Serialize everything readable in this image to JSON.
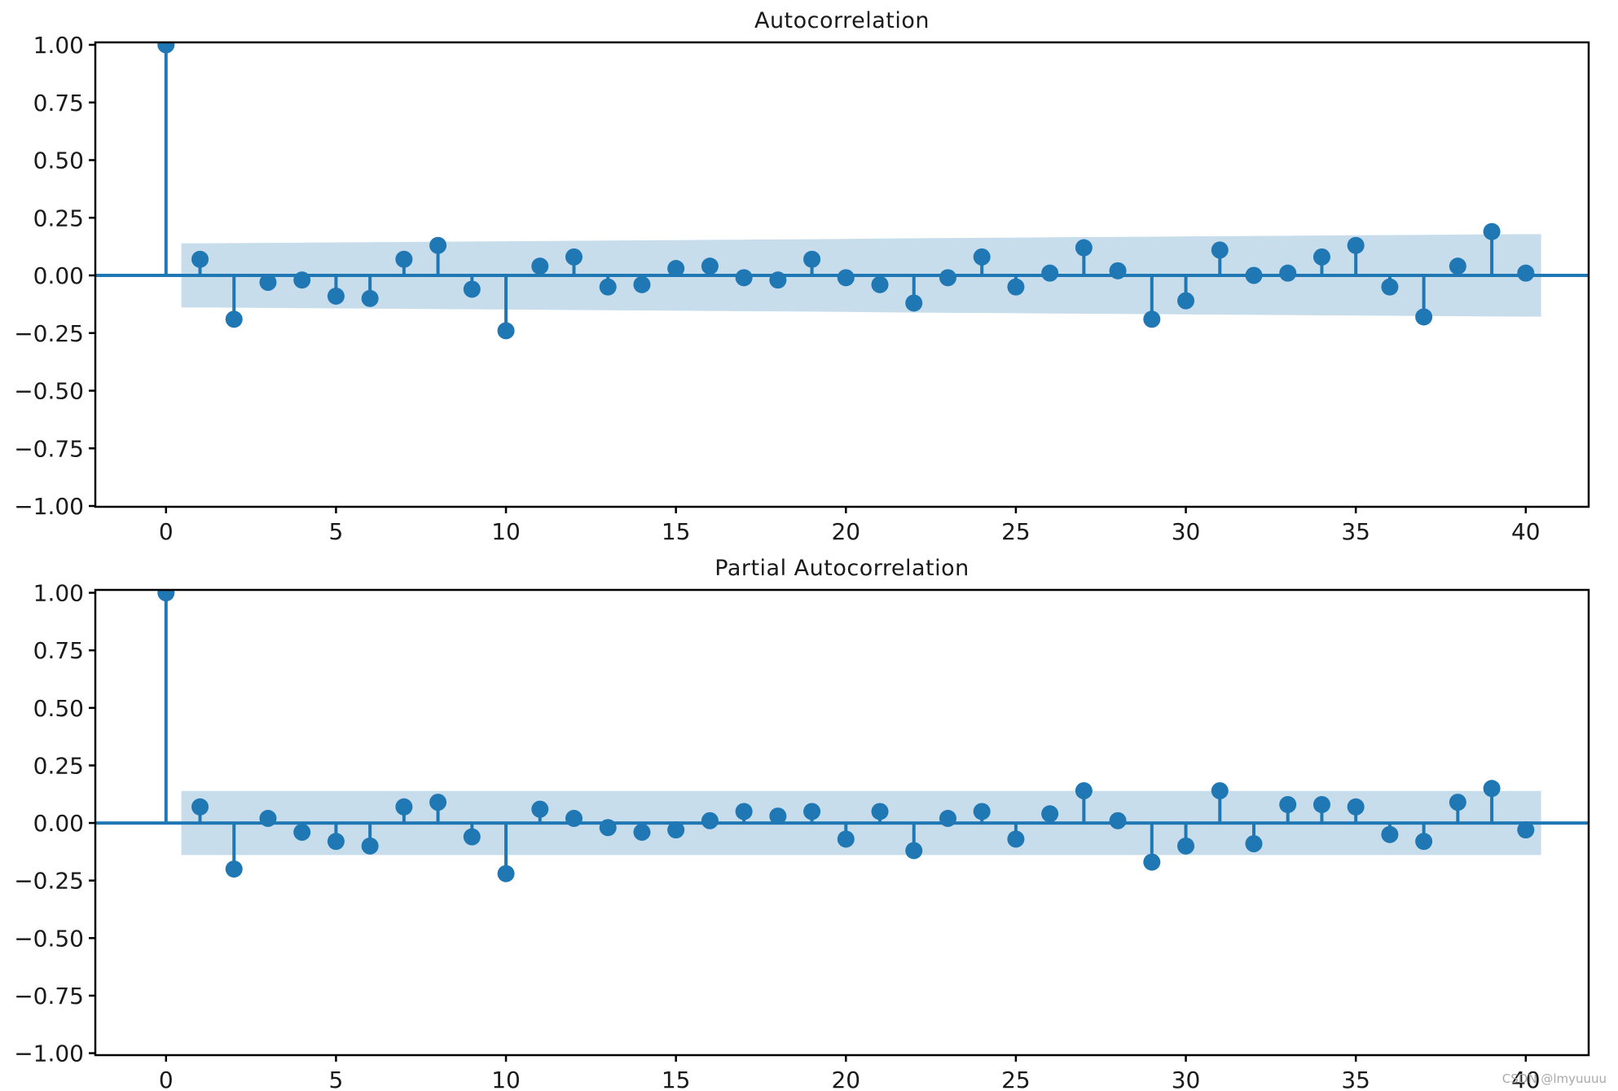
{
  "figure": {
    "background": "#ffffff",
    "accent_color": "#1f77b4",
    "band_opacity": 0.25,
    "spine_color": "#000000",
    "text_color": "#1a1a1a"
  },
  "watermark": {
    "text": "CSDN @lmyuuuu",
    "color": "#a9a9a9"
  },
  "chart_data": [
    {
      "type": "stem",
      "title": "Autocorrelation",
      "x": [
        0,
        1,
        2,
        3,
        4,
        5,
        6,
        7,
        8,
        9,
        10,
        11,
        12,
        13,
        14,
        15,
        16,
        17,
        18,
        19,
        20,
        21,
        22,
        23,
        24,
        25,
        26,
        27,
        28,
        29,
        30,
        31,
        32,
        33,
        34,
        35,
        36,
        37,
        38,
        39,
        40
      ],
      "values": [
        1.0,
        0.07,
        -0.19,
        -0.03,
        -0.02,
        -0.09,
        -0.1,
        0.07,
        0.13,
        -0.06,
        -0.24,
        0.04,
        0.08,
        -0.05,
        -0.04,
        0.03,
        0.04,
        -0.01,
        -0.02,
        0.07,
        -0.01,
        -0.04,
        -0.12,
        -0.01,
        0.08,
        -0.05,
        0.01,
        0.12,
        0.02,
        -0.19,
        -0.11,
        0.11,
        0.0,
        0.01,
        0.08,
        0.13,
        -0.05,
        -0.18,
        0.04,
        0.19,
        0.01
      ],
      "ci_lags": [
        1,
        2,
        3,
        4,
        5,
        6,
        7,
        8,
        9,
        10,
        11,
        12,
        13,
        14,
        15,
        16,
        17,
        18,
        19,
        20,
        21,
        22,
        23,
        24,
        25,
        26,
        27,
        28,
        29,
        30,
        31,
        32,
        33,
        34,
        35,
        36,
        37,
        38,
        39,
        40
      ],
      "ci_upper": [
        0.139,
        0.14,
        0.141,
        0.142,
        0.143,
        0.144,
        0.145,
        0.146,
        0.147,
        0.148,
        0.149,
        0.15,
        0.151,
        0.152,
        0.153,
        0.154,
        0.155,
        0.156,
        0.157,
        0.158,
        0.16,
        0.161,
        0.162,
        0.163,
        0.164,
        0.165,
        0.166,
        0.167,
        0.168,
        0.169,
        0.17,
        0.171,
        0.172,
        0.173,
        0.174,
        0.175,
        0.176,
        0.177,
        0.178,
        0.179
      ],
      "ci_symmetric": true,
      "ci_x_start": 0.45,
      "ci_x_end": 40.45,
      "ylim": [
        -1.0,
        1.0
      ],
      "xlabel": "",
      "ylabel": "",
      "grid": false,
      "legend": null,
      "yticks": {
        "values": [
          1.0,
          0.75,
          0.5,
          0.25,
          0.0,
          -0.25,
          -0.5,
          -0.75,
          -1.0
        ],
        "labels": [
          "1.00",
          "0.75",
          "0.50",
          "0.25",
          "0.00",
          "−0.25",
          "−0.50",
          "−0.75",
          "−1.00"
        ]
      },
      "xticks": {
        "values": [
          0,
          5,
          10,
          15,
          20,
          25,
          30,
          35,
          40
        ],
        "labels": [
          "0",
          "5",
          "10",
          "15",
          "20",
          "25",
          "30",
          "35",
          "40"
        ]
      }
    },
    {
      "type": "stem",
      "title": "Partial Autocorrelation",
      "x": [
        0,
        1,
        2,
        3,
        4,
        5,
        6,
        7,
        8,
        9,
        10,
        11,
        12,
        13,
        14,
        15,
        16,
        17,
        18,
        19,
        20,
        21,
        22,
        23,
        24,
        25,
        26,
        27,
        28,
        29,
        30,
        31,
        32,
        33,
        34,
        35,
        36,
        37,
        38,
        39,
        40
      ],
      "values": [
        1.0,
        0.07,
        -0.2,
        0.02,
        -0.04,
        -0.08,
        -0.1,
        0.07,
        0.09,
        -0.06,
        -0.22,
        0.06,
        0.02,
        -0.02,
        -0.04,
        -0.03,
        0.01,
        0.05,
        0.03,
        0.05,
        -0.07,
        0.05,
        -0.12,
        0.02,
        0.05,
        -0.07,
        0.04,
        0.14,
        0.01,
        -0.17,
        -0.1,
        0.14,
        -0.09,
        0.08,
        0.08,
        0.07,
        -0.05,
        -0.08,
        0.09,
        0.15,
        -0.03
      ],
      "ci_lags": [
        1,
        2,
        3,
        4,
        5,
        6,
        7,
        8,
        9,
        10,
        11,
        12,
        13,
        14,
        15,
        16,
        17,
        18,
        19,
        20,
        21,
        22,
        23,
        24,
        25,
        26,
        27,
        28,
        29,
        30,
        31,
        32,
        33,
        34,
        35,
        36,
        37,
        38,
        39,
        40
      ],
      "ci_upper": [
        0.139,
        0.139,
        0.139,
        0.139,
        0.139,
        0.139,
        0.139,
        0.139,
        0.139,
        0.139,
        0.139,
        0.139,
        0.139,
        0.139,
        0.139,
        0.139,
        0.139,
        0.139,
        0.139,
        0.139,
        0.139,
        0.139,
        0.139,
        0.139,
        0.139,
        0.139,
        0.139,
        0.139,
        0.139,
        0.139,
        0.139,
        0.139,
        0.139,
        0.139,
        0.139,
        0.139,
        0.139,
        0.139,
        0.139,
        0.139
      ],
      "ci_symmetric": true,
      "ci_x_start": 0.45,
      "ci_x_end": 40.45,
      "ylim": [
        -1.0,
        1.0
      ],
      "xlabel": "",
      "ylabel": "",
      "grid": false,
      "legend": null,
      "yticks": {
        "values": [
          1.0,
          0.75,
          0.5,
          0.25,
          0.0,
          -0.25,
          -0.5,
          -0.75,
          -1.0
        ],
        "labels": [
          "1.00",
          "0.75",
          "0.50",
          "0.25",
          "0.00",
          "−0.25",
          "−0.50",
          "−0.75",
          "−1.00"
        ]
      },
      "xticks": {
        "values": [
          0,
          5,
          10,
          15,
          20,
          25,
          30,
          35,
          40
        ],
        "labels": [
          "0",
          "5",
          "10",
          "15",
          "20",
          "25",
          "30",
          "35",
          "40"
        ]
      }
    }
  ]
}
